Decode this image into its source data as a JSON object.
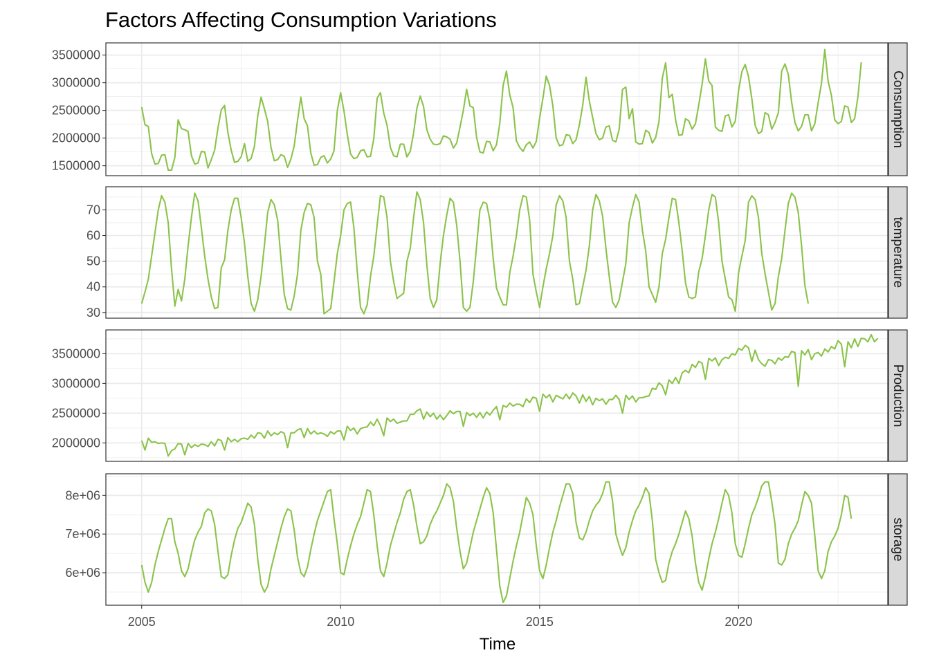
{
  "chart_data": {
    "type": "line",
    "title": "Factors Affecting Consumption Variations",
    "xlabel": "Time",
    "x_range": [
      2004.1,
      2023.75
    ],
    "x_ticks": [
      2005,
      2010,
      2015,
      2020
    ],
    "x_tick_labels": [
      "2005",
      "2010",
      "2015",
      "2020"
    ],
    "x_start": 2005.0,
    "x_step": 0.0833333,
    "line_color": "#8bc34a",
    "grid": true,
    "panels": [
      {
        "name": "Consumption",
        "ylim": [
          1320000,
          3720000
        ],
        "y_ticks": [
          1500000,
          2000000,
          2500000,
          3000000,
          3500000
        ],
        "y_tick_labels": [
          "1500000",
          "2000000",
          "2500000",
          "3000000",
          "3500000"
        ],
        "values": [
          2560000,
          2240000,
          2210000,
          1720000,
          1530000,
          1540000,
          1690000,
          1700000,
          1420000,
          1420000,
          1650000,
          2330000,
          2170000,
          2150000,
          2120000,
          1680000,
          1530000,
          1550000,
          1760000,
          1750000,
          1460000,
          1610000,
          1780000,
          2180000,
          2510000,
          2590000,
          2100000,
          1780000,
          1560000,
          1580000,
          1660000,
          1900000,
          1580000,
          1630000,
          1850000,
          2400000,
          2740000,
          2530000,
          2300000,
          1830000,
          1590000,
          1610000,
          1700000,
          1670000,
          1470000,
          1620000,
          1860000,
          2320000,
          2740000,
          2350000,
          2220000,
          1730000,
          1510000,
          1520000,
          1650000,
          1680000,
          1550000,
          1620000,
          1770000,
          2500000,
          2820000,
          2490000,
          2070000,
          1710000,
          1630000,
          1650000,
          1770000,
          1790000,
          1660000,
          1670000,
          1990000,
          2720000,
          2820000,
          2450000,
          2230000,
          1830000,
          1680000,
          1660000,
          1890000,
          1890000,
          1660000,
          1760000,
          2090000,
          2540000,
          2760000,
          2570000,
          2150000,
          1980000,
          1890000,
          1880000,
          1900000,
          2040000,
          2020000,
          1980000,
          1820000,
          1910000,
          2200000,
          2500000,
          2880000,
          2580000,
          2550000,
          2010000,
          1750000,
          1730000,
          1940000,
          1930000,
          1770000,
          1880000,
          2270000,
          2950000,
          3210000,
          2780000,
          2550000,
          1950000,
          1830000,
          1760000,
          1880000,
          1930000,
          1820000,
          1940000,
          2360000,
          2720000,
          3120000,
          2950000,
          2580000,
          2000000,
          1860000,
          1880000,
          2060000,
          2050000,
          1900000,
          1970000,
          2240000,
          2590000,
          3100000,
          2670000,
          2370000,
          2080000,
          1970000,
          2000000,
          2200000,
          2220000,
          1960000,
          1930000,
          2160000,
          2880000,
          2920000,
          2350000,
          2530000,
          1930000,
          1890000,
          1900000,
          2140000,
          2100000,
          1910000,
          2010000,
          2300000,
          3080000,
          3360000,
          2730000,
          2790000,
          2330000,
          2050000,
          2060000,
          2350000,
          2310000,
          2160000,
          2260000,
          2600000,
          2970000,
          3430000,
          3030000,
          2950000,
          2200000,
          2140000,
          2120000,
          2400000,
          2420000,
          2200000,
          2300000,
          2860000,
          3200000,
          3330000,
          3110000,
          2710000,
          2230000,
          2080000,
          2120000,
          2460000,
          2420000,
          2160000,
          2280000,
          2460000,
          3210000,
          3340000,
          3150000,
          2650000,
          2280000,
          2130000,
          2210000,
          2420000,
          2420000,
          2130000,
          2260000,
          2640000,
          2990000,
          3600000,
          3030000,
          2770000,
          2330000,
          2260000,
          2300000,
          2580000,
          2560000,
          2280000,
          2350000,
          2750000,
          3370000
        ]
      },
      {
        "name": "temperature",
        "ylim": [
          27.8,
          79.0
        ],
        "y_ticks": [
          30,
          40,
          50,
          60,
          70
        ],
        "y_tick_labels": [
          "30",
          "40",
          "50",
          "60",
          "70"
        ],
        "values": [
          33.5,
          38.0,
          43.0,
          52.0,
          61.0,
          70.0,
          75.5,
          73.0,
          65.0,
          47.0,
          32.5,
          39.0,
          34.5,
          43.0,
          56.0,
          67.0,
          76.5,
          73.5,
          63.0,
          52.0,
          43.0,
          36.0,
          31.5,
          32.0,
          47.5,
          50.5,
          62.0,
          70.0,
          74.5,
          74.5,
          67.0,
          57.0,
          44.0,
          33.5,
          30.5,
          35.0,
          44.0,
          56.0,
          69.0,
          74.0,
          72.0,
          66.0,
          51.0,
          37.0,
          31.5,
          31.0,
          36.5,
          45.0,
          62.0,
          69.0,
          72.5,
          72.0,
          67.0,
          50.0,
          45.0,
          29.5,
          30.5,
          31.5,
          42.0,
          53.0,
          60.0,
          70.0,
          72.5,
          73.0,
          63.0,
          46.0,
          32.0,
          29.5,
          33.0,
          44.0,
          52.0,
          64.0,
          75.5,
          75.0,
          67.0,
          50.0,
          42.0,
          35.5,
          36.5,
          37.5,
          50.0,
          55.0,
          67.0,
          77.0,
          74.0,
          65.0,
          48.5,
          35.5,
          32.0,
          35.0,
          49.0,
          60.0,
          68.0,
          74.5,
          73.0,
          64.0,
          50.0,
          32.0,
          30.5,
          32.0,
          42.0,
          56.0,
          70.0,
          73.0,
          72.5,
          66.0,
          51.0,
          39.5,
          36.0,
          33.0,
          33.0,
          45.5,
          52.0,
          60.0,
          70.0,
          75.5,
          75.0,
          66.0,
          45.0,
          38.0,
          32.0,
          40.0,
          47.0,
          53.0,
          60.0,
          72.0,
          75.5,
          73.5,
          67.0,
          50.0,
          43.0,
          33.0,
          33.5,
          40.0,
          46.5,
          56.0,
          70.0,
          76.0,
          73.5,
          67.5,
          55.0,
          44.0,
          34.0,
          32.0,
          35.0,
          42.0,
          49.0,
          65.0,
          71.0,
          76.0,
          73.0,
          62.0,
          54.0,
          40.0,
          37.0,
          34.0,
          40.0,
          53.0,
          58.5,
          67.0,
          74.5,
          74.0,
          65.0,
          54.0,
          41.5,
          36.0,
          35.5,
          36.0,
          46.0,
          51.0,
          60.0,
          70.0,
          76.0,
          75.0,
          65.0,
          50.0,
          43.0,
          36.0,
          35.0,
          30.5,
          45.5,
          52.0,
          58.0,
          73.0,
          75.5,
          74.0,
          67.0,
          53.0,
          45.0,
          38.0,
          31.0,
          33.5,
          44.0,
          51.0,
          62.0,
          72.5,
          76.5,
          75.0,
          69.0,
          56.0,
          40.5,
          33.5
        ]
      },
      {
        "name": "Production",
        "ylim": [
          1690000,
          3900000
        ],
        "y_ticks": [
          2000000,
          2500000,
          3000000,
          3500000
        ],
        "y_tick_labels": [
          "2000000",
          "2500000",
          "3000000",
          "3500000"
        ],
        "values": [
          2040000,
          1880000,
          2080000,
          2010000,
          2020000,
          1990000,
          2000000,
          1990000,
          1780000,
          1870000,
          1900000,
          1990000,
          1980000,
          1800000,
          1990000,
          1920000,
          1970000,
          1940000,
          1980000,
          1970000,
          1940000,
          2020000,
          1950000,
          2060000,
          2040000,
          1880000,
          2090000,
          2020000,
          2060000,
          2020000,
          2070000,
          2080000,
          2060000,
          2130000,
          2080000,
          2170000,
          2160000,
          2080000,
          2200000,
          2120000,
          2170000,
          2140000,
          2190000,
          2160000,
          1920000,
          2170000,
          2170000,
          2220000,
          2240000,
          2090000,
          2240000,
          2150000,
          2200000,
          2150000,
          2170000,
          2150000,
          2110000,
          2190000,
          2150000,
          2200000,
          2200000,
          2050000,
          2280000,
          2210000,
          2250000,
          2150000,
          2240000,
          2260000,
          2270000,
          2350000,
          2290000,
          2400000,
          2290000,
          2120000,
          2420000,
          2360000,
          2400000,
          2330000,
          2350000,
          2370000,
          2370000,
          2480000,
          2480000,
          2540000,
          2570000,
          2400000,
          2520000,
          2440000,
          2500000,
          2400000,
          2470000,
          2390000,
          2460000,
          2540000,
          2490000,
          2530000,
          2530000,
          2280000,
          2510000,
          2460000,
          2500000,
          2430000,
          2510000,
          2420000,
          2520000,
          2470000,
          2550000,
          2610000,
          2390000,
          2630000,
          2600000,
          2670000,
          2620000,
          2650000,
          2650000,
          2610000,
          2740000,
          2680000,
          2770000,
          2750000,
          2530000,
          2820000,
          2760000,
          2810000,
          2690000,
          2800000,
          2770000,
          2740000,
          2820000,
          2740000,
          2840000,
          2790000,
          2670000,
          2810000,
          2700000,
          2780000,
          2640000,
          2750000,
          2710000,
          2740000,
          2650000,
          2730000,
          2730000,
          2800000,
          2730000,
          2500000,
          2800000,
          2730000,
          2790000,
          2690000,
          2760000,
          2760000,
          2780000,
          2790000,
          2920000,
          2900000,
          3010000,
          2960000,
          2810000,
          3060000,
          3000000,
          3100000,
          3000000,
          3180000,
          3220000,
          3180000,
          3320000,
          3270000,
          3370000,
          3340000,
          3070000,
          3420000,
          3380000,
          3430000,
          3300000,
          3400000,
          3440000,
          3420000,
          3500000,
          3480000,
          3590000,
          3560000,
          3640000,
          3600000,
          3370000,
          3560000,
          3400000,
          3330000,
          3290000,
          3400000,
          3390000,
          3330000,
          3430000,
          3390000,
          3450000,
          3440000,
          3540000,
          3520000,
          2950000,
          3550000,
          3480000,
          3570000,
          3400000,
          3500000,
          3520000,
          3460000,
          3580000,
          3530000,
          3620000,
          3580000,
          3720000,
          3660000,
          3280000,
          3700000,
          3600000,
          3750000,
          3620000,
          3760000,
          3750000,
          3700000,
          3820000,
          3700000,
          3760000
        ]
      },
      {
        "name": "storage",
        "ylim": [
          5160000,
          8560000
        ],
        "y_ticks": [
          6000000,
          7000000,
          8000000
        ],
        "y_tick_labels": [
          "6e+06",
          "7e+06",
          "8e+06"
        ],
        "values": [
          6200000,
          5750000,
          5500000,
          5750000,
          6200000,
          6550000,
          6850000,
          7150000,
          7400000,
          7400000,
          6800000,
          6500000,
          6050000,
          5900000,
          6100000,
          6500000,
          6850000,
          7050000,
          7200000,
          7550000,
          7650000,
          7600000,
          7250000,
          6550000,
          5900000,
          5850000,
          5950000,
          6450000,
          6850000,
          7150000,
          7300000,
          7550000,
          7800000,
          7700000,
          7250000,
          6350000,
          5700000,
          5500000,
          5650000,
          6100000,
          6450000,
          6800000,
          7150000,
          7450000,
          7650000,
          7600000,
          7100000,
          6400000,
          6000000,
          5900000,
          6150000,
          6600000,
          7000000,
          7350000,
          7600000,
          7850000,
          8100000,
          8150000,
          7400000,
          6750000,
          6000000,
          5950000,
          6350000,
          6700000,
          7000000,
          7250000,
          7450000,
          7800000,
          8150000,
          8100000,
          7500000,
          6700000,
          6050000,
          5900000,
          6250000,
          6700000,
          7000000,
          7300000,
          7550000,
          7900000,
          8100000,
          8150000,
          7750000,
          7200000,
          6750000,
          6800000,
          6950000,
          7250000,
          7450000,
          7600000,
          7800000,
          8000000,
          8300000,
          8200000,
          7850000,
          7150000,
          6550000,
          6100000,
          6250000,
          6650000,
          7050000,
          7350000,
          7650000,
          7950000,
          8200000,
          8050000,
          7550000,
          6600000,
          5650000,
          5230000,
          5400000,
          5850000,
          6300000,
          6700000,
          7050000,
          7500000,
          7950000,
          7800000,
          7500000,
          6700000,
          6050000,
          5850000,
          6200000,
          6650000,
          7050000,
          7350000,
          7700000,
          8000000,
          8300000,
          8300000,
          8050000,
          7300000,
          6900000,
          6850000,
          7050000,
          7350000,
          7600000,
          7750000,
          7850000,
          8050000,
          8350000,
          8350000,
          7850000,
          7000000,
          6700000,
          6450000,
          6650000,
          7050000,
          7350000,
          7600000,
          7750000,
          7950000,
          8200000,
          8050000,
          7350000,
          6350000,
          6000000,
          5750000,
          5800000,
          6250000,
          6550000,
          6750000,
          7000000,
          7300000,
          7600000,
          7400000,
          6950000,
          6250000,
          5750000,
          5550000,
          5900000,
          6350000,
          6750000,
          7050000,
          7400000,
          7800000,
          8150000,
          8000000,
          7550000,
          6750000,
          6450000,
          6400000,
          6750000,
          7150000,
          7500000,
          7700000,
          7950000,
          8250000,
          8350000,
          8350000,
          7850000,
          7250000,
          6250000,
          6200000,
          6350000,
          6750000,
          7000000,
          7150000,
          7350000,
          7750000,
          8100000,
          8000000,
          7800000,
          6950000,
          6050000,
          5850000,
          6050000,
          6550000,
          6800000,
          6950000,
          7150000,
          7500000,
          8000000,
          7950000,
          7400000
        ]
      }
    ]
  }
}
